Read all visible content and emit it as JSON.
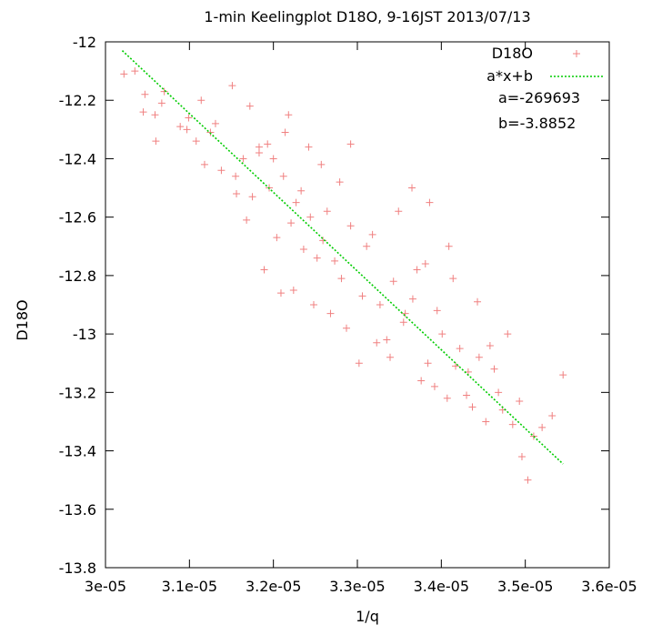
{
  "chart_data": {
    "type": "scatter",
    "title": "1-min Keelingplot D18O, 9-16JST 2013/07/13",
    "xlabel": "1/q",
    "ylabel": "D18O",
    "xlim": [
      3e-05,
      3.6e-05
    ],
    "ylim": [
      -13.8,
      -12
    ],
    "xticks": [
      "3e-05",
      "3.1e-05",
      "3.2e-05",
      "3.3e-05",
      "3.4e-05",
      "3.5e-05",
      "3.6e-05"
    ],
    "yticks": [
      "-12",
      "-12.2",
      "-12.4",
      "-12.6",
      "-12.8",
      "-13",
      "-13.2",
      "-13.4",
      "-13.6",
      "-13.8"
    ],
    "grid": false,
    "legend_position": "top-right",
    "annotations": [
      "a=-269693",
      "b=-3.8852"
    ],
    "series": [
      {
        "name": "D18O",
        "marker": "plus",
        "color": "#f08080",
        "x": [
          3.022e-05,
          3.035e-05,
          3.047e-05,
          3.059e-05,
          3.067e-05,
          3.089e-05,
          3.097e-05,
          3.108e-05,
          3.118e-05,
          3.125e-05,
          3.131e-05,
          3.155e-05,
          3.164e-05,
          3.168e-05,
          3.175e-05,
          3.183e-05,
          3.195e-05,
          3.204e-05,
          3.212e-05,
          3.221e-05,
          3.227e-05,
          3.236e-05,
          3.244e-05,
          3.259e-05,
          3.264e-05,
          3.273e-05,
          3.281e-05,
          3.292e-05,
          3.306e-05,
          3.311e-05,
          3.327e-05,
          3.335e-05,
          3.343e-05,
          3.355e-05,
          3.366e-05,
          3.371e-05,
          3.384e-05,
          3.392e-05,
          3.401e-05,
          3.407e-05,
          3.422e-05,
          3.432e-05,
          3.445e-05,
          3.453e-05,
          3.468e-05,
          3.473e-05,
          3.485e-05,
          3.493e-05,
          3.51e-05,
          3.52e-05,
          3.532e-05,
          3.545e-05,
          3.503e-05,
          3.496e-05,
          3.443e-05,
          3.409e-05,
          3.386e-05,
          3.365e-05,
          3.292e-05,
          3.257e-05,
          3.218e-05,
          3.183e-05,
          3.151e-05,
          3.114e-05,
          3.07e-05,
          3.045e-05,
          3.06e-05,
          3.099e-05,
          3.138e-05,
          3.172e-05,
          3.2e-05,
          3.233e-05,
          3.279e-05,
          3.318e-05,
          3.349e-05,
          3.381e-05,
          3.414e-05,
          3.458e-05,
          3.479e-05,
          3.248e-05,
          3.209e-05,
          3.302e-05,
          3.339e-05,
          3.376e-05,
          3.43e-05,
          3.463e-05,
          3.156e-05,
          3.189e-05,
          3.224e-05,
          3.252e-05,
          3.268e-05,
          3.287e-05,
          3.323e-05,
          3.357e-05,
          3.395e-05,
          3.417e-05,
          3.437e-05,
          3.242e-05,
          3.214e-05,
          3.193e-05
        ],
        "y": [
          -12.11,
          -12.1,
          -12.18,
          -12.25,
          -12.21,
          -12.29,
          -12.3,
          -12.34,
          -12.42,
          -12.31,
          -12.28,
          -12.46,
          -12.4,
          -12.61,
          -12.53,
          -12.38,
          -12.5,
          -12.67,
          -12.46,
          -12.62,
          -12.55,
          -12.71,
          -12.6,
          -12.68,
          -12.58,
          -12.75,
          -12.81,
          -12.63,
          -12.87,
          -12.7,
          -12.9,
          -13.02,
          -12.82,
          -12.96,
          -12.88,
          -12.78,
          -13.1,
          -13.18,
          -13.0,
          -13.22,
          -13.05,
          -13.13,
          -13.08,
          -13.3,
          -13.2,
          -13.26,
          -13.31,
          -13.23,
          -13.35,
          -13.32,
          -13.28,
          -13.14,
          -13.5,
          -13.42,
          -12.89,
          -12.7,
          -12.55,
          -12.5,
          -12.35,
          -12.42,
          -12.25,
          -12.36,
          -12.15,
          -12.2,
          -12.17,
          -12.24,
          -12.34,
          -12.26,
          -12.44,
          -12.22,
          -12.4,
          -12.51,
          -12.48,
          -12.66,
          -12.58,
          -12.76,
          -12.81,
          -13.04,
          -13.0,
          -12.9,
          -12.86,
          -13.1,
          -13.08,
          -13.16,
          -13.21,
          -13.12,
          -12.52,
          -12.78,
          -12.85,
          -12.74,
          -12.93,
          -12.98,
          -13.03,
          -12.93,
          -12.92,
          -13.11,
          -13.25,
          -12.36,
          -12.31,
          -12.35
        ]
      },
      {
        "name": "a*x+b",
        "style": "dotted-line",
        "color": "#00cc00",
        "x": [
          3.02e-05,
          3.545e-05
        ],
        "y": [
          -12.03,
          -13.445
        ]
      }
    ]
  }
}
